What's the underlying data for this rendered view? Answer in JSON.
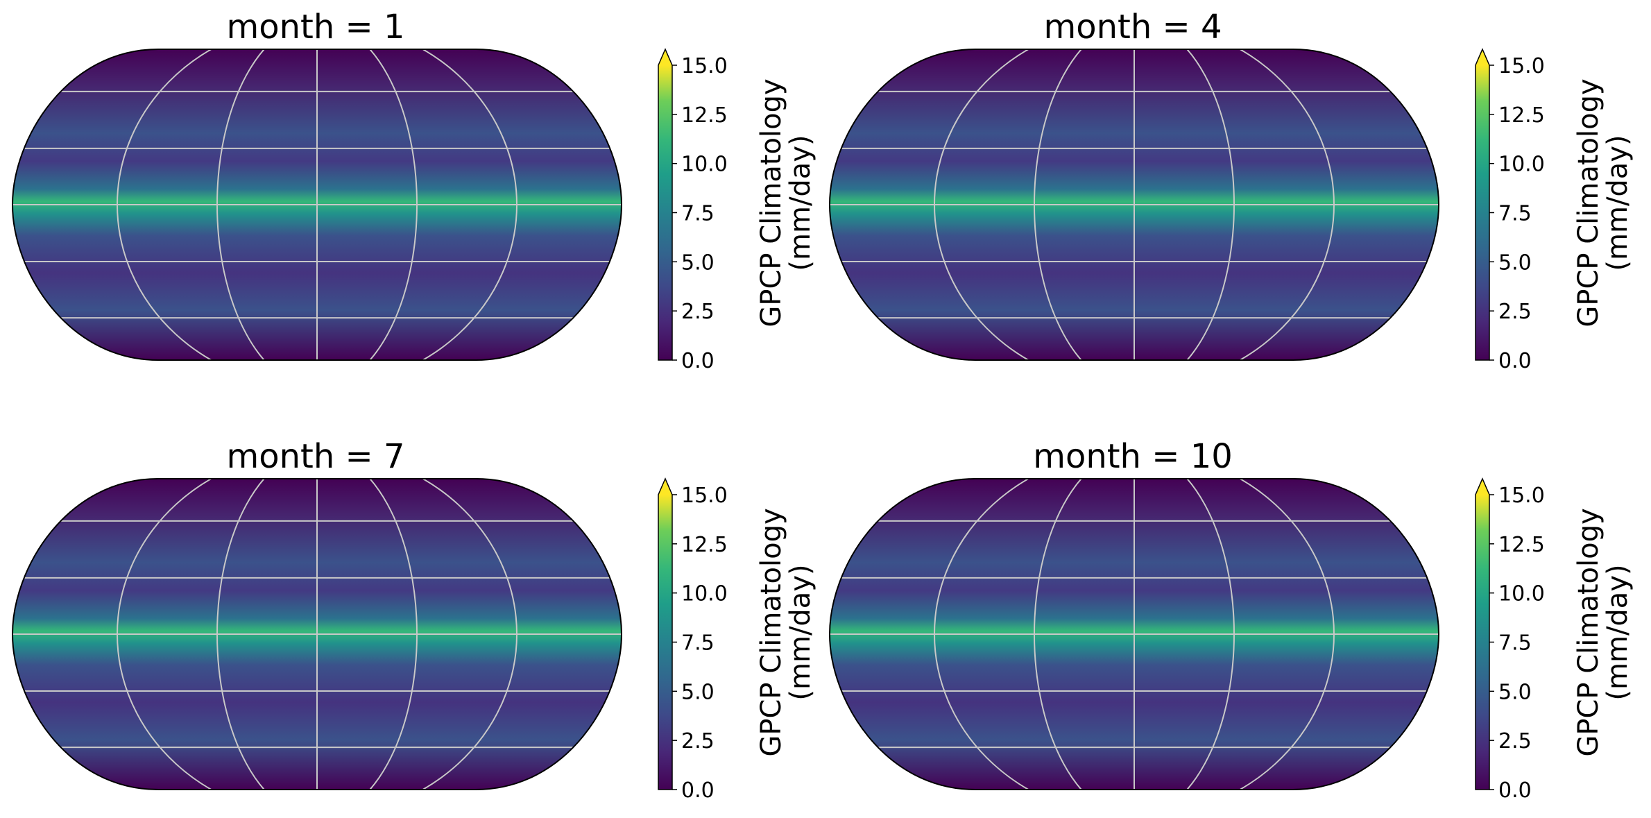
{
  "chart_data": [
    {
      "type": "map",
      "title": "month = 1",
      "colorbar_label": [
        "GPCP Climatology",
        "(mm/day)"
      ],
      "colormap": "viridis",
      "extend": "max",
      "clim": [
        0,
        15
      ],
      "cticks": [
        {
          "value": 0,
          "label": "0.0"
        },
        {
          "value": 2.5,
          "label": "2.5"
        },
        {
          "value": 5,
          "label": "5.0"
        },
        {
          "value": 7.5,
          "label": "7.5"
        },
        {
          "value": 10,
          "label": "10.0"
        },
        {
          "value": 12.5,
          "label": "12.5"
        },
        {
          "value": 15,
          "label": "15.0"
        }
      ]
    },
    {
      "type": "map",
      "title": "month = 4",
      "colorbar_label": [
        "GPCP Climatology",
        "(mm/day)"
      ],
      "colormap": "viridis",
      "extend": "max",
      "clim": [
        0,
        15
      ],
      "cticks": [
        {
          "value": 0,
          "label": "0.0"
        },
        {
          "value": 2.5,
          "label": "2.5"
        },
        {
          "value": 5,
          "label": "5.0"
        },
        {
          "value": 7.5,
          "label": "7.5"
        },
        {
          "value": 10,
          "label": "10.0"
        },
        {
          "value": 12.5,
          "label": "12.5"
        },
        {
          "value": 15,
          "label": "15.0"
        }
      ]
    },
    {
      "type": "map",
      "title": "month = 7",
      "colorbar_label": [
        "GPCP Climatology",
        "(mm/day)"
      ],
      "colormap": "viridis",
      "extend": "max",
      "clim": [
        0,
        15
      ],
      "cticks": [
        {
          "value": 0,
          "label": "0.0"
        },
        {
          "value": 2.5,
          "label": "2.5"
        },
        {
          "value": 5,
          "label": "5.0"
        },
        {
          "value": 7.5,
          "label": "7.5"
        },
        {
          "value": 10,
          "label": "10.0"
        },
        {
          "value": 12.5,
          "label": "12.5"
        },
        {
          "value": 15,
          "label": "15.0"
        }
      ]
    },
    {
      "type": "map",
      "title": "month = 10",
      "colorbar_label": [
        "GPCP Climatology",
        "(mm/day)"
      ],
      "colormap": "viridis",
      "extend": "max",
      "clim": [
        0,
        15
      ],
      "cticks": [
        {
          "value": 0,
          "label": "0.0"
        },
        {
          "value": 2.5,
          "label": "2.5"
        },
        {
          "value": 5,
          "label": "5.0"
        },
        {
          "value": 7.5,
          "label": "7.5"
        },
        {
          "value": 10,
          "label": "10.0"
        },
        {
          "value": 12.5,
          "label": "12.5"
        },
        {
          "value": 15,
          "label": "15.0"
        }
      ]
    }
  ]
}
